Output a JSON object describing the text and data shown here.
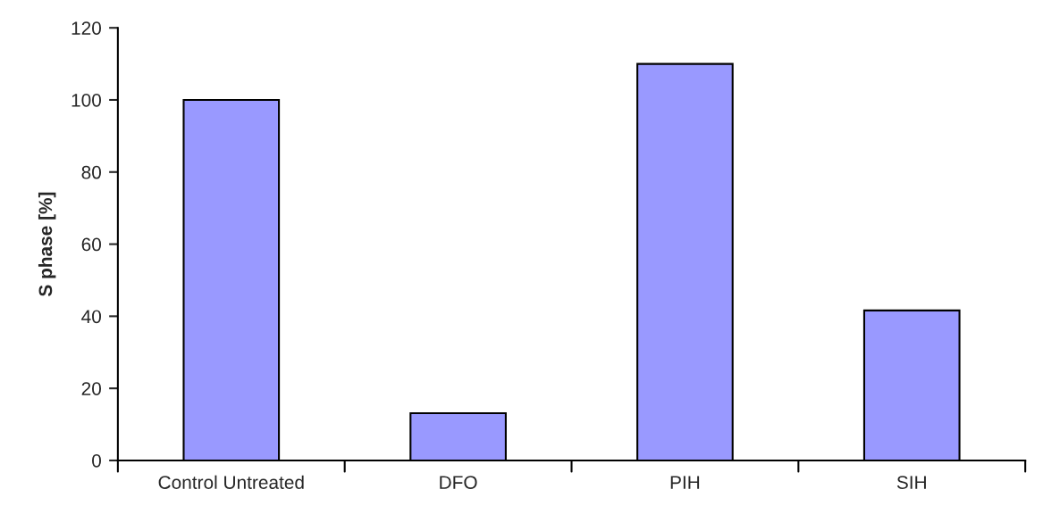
{
  "chart_data": {
    "type": "bar",
    "ylabel": "S phase [%]",
    "categories": [
      "Control Untreated",
      "DFO",
      "PIH",
      "SIH"
    ],
    "values": [
      100,
      13.1,
      110,
      41.6
    ],
    "color": "#9999ff",
    "ylim": [
      0,
      120
    ],
    "yticks": [
      0,
      20,
      40,
      60,
      80,
      100,
      120
    ],
    "grid": false
  }
}
